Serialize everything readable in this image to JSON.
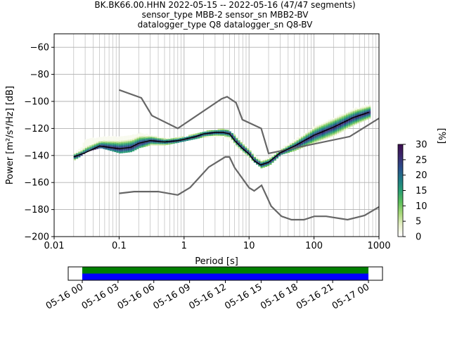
{
  "header": {
    "title_lines": [
      "BK.BK66.00.HHN   2022-05-15 -- 2022-05-16  (47/47 segments)",
      "sensor_type MBB-2 sensor_sn MBB2-BV",
      "datalogger_type Q8 datalogger_sn Q8-BV"
    ]
  },
  "chart_data": [
    {
      "type": "heatmap",
      "xlabel": "Period [s]",
      "ylabel": "Power [m²/s⁴/Hz] [dB]",
      "xscale": "log",
      "xlim": [
        0.01,
        1000
      ],
      "ylim": [
        -200,
        -50
      ],
      "grid": true,
      "x_ticks": [
        0.01,
        0.1,
        1,
        10,
        100,
        1000
      ],
      "x_tick_labels": [
        "0.01",
        "0.1",
        "1",
        "10",
        "100",
        "1000"
      ],
      "y_ticks": [
        -200,
        -180,
        -160,
        -140,
        -120,
        -100,
        -80,
        -60
      ],
      "y_tick_labels": [
        "−200",
        "−180",
        "−160",
        "−140",
        "−120",
        "−100",
        "−80",
        "−60"
      ],
      "colorbar": {
        "label": "[%]",
        "range": [
          0,
          30
        ],
        "ticks": [
          0,
          5,
          10,
          15,
          20,
          25,
          30
        ],
        "colormap": [
          "#ffffff",
          "#e8f0c8",
          "#a9d97a",
          "#5cbf5a",
          "#2a9e74",
          "#1f7a85",
          "#2a4f8c",
          "#3b2a6e",
          "#3c0f52"
        ]
      },
      "mean_curve_color": "#000000",
      "noise_model_color": "#666666",
      "mean_psd": {
        "x": [
          0.02,
          0.03,
          0.05,
          0.1,
          0.15,
          0.2,
          0.3,
          0.5,
          0.8,
          1,
          1.5,
          2,
          3,
          4,
          5,
          6,
          8,
          10,
          12,
          15,
          20,
          30,
          50,
          100,
          200,
          400,
          700
        ],
        "y": [
          -141,
          -138,
          -133,
          -135,
          -134,
          -131,
          -129,
          -130,
          -129,
          -128,
          -126,
          -124,
          -123,
          -123,
          -124,
          -129,
          -135,
          -139,
          -144,
          -147,
          -145,
          -138,
          -133,
          -125,
          -119,
          -112,
          -108
        ]
      },
      "nhnm": {
        "x": [
          0.1,
          0.22,
          0.32,
          0.8,
          3.8,
          4.6,
          6.3,
          7.9,
          15.4,
          20,
          354.8,
          1000
        ],
        "y": [
          -91.5,
          -97.4,
          -110.5,
          -120,
          -98,
          -96.5,
          -101,
          -113.5,
          -120,
          -138.5,
          -126,
          -112.5
        ]
      },
      "nlnm": {
        "x": [
          0.1,
          0.17,
          0.4,
          0.8,
          1.24,
          2.4,
          4.3,
          5,
          6,
          10,
          12,
          15.6,
          21.9,
          31.6,
          45,
          70,
          101,
          154,
          328,
          600,
          1000
        ],
        "y": [
          -168,
          -166.7,
          -166.7,
          -169.2,
          -163.7,
          -148.6,
          -141.1,
          -141.1,
          -149,
          -163.8,
          -166.2,
          -162.1,
          -177.5,
          -185,
          -187.5,
          -187.5,
          -185,
          -185,
          -187.5,
          -184.4,
          -178
        ]
      },
      "density_bands": [
        {
          "x": [
            0.02,
            0.025,
            0.03,
            0.05,
            0.1,
            0.15,
            0.2,
            0.3,
            0.5,
            1,
            2,
            4,
            6,
            10,
            15,
            20,
            30,
            50,
            100,
            200,
            400,
            700
          ],
          "lo": [
            -143,
            -140,
            -137,
            -134,
            -138,
            -137,
            -134,
            -132,
            -132,
            -129,
            -126,
            -126,
            -132,
            -142,
            -149,
            -147,
            -139,
            -136,
            -130,
            -125,
            -117,
            -112
          ],
          "hi": [
            -138,
            -134,
            -128,
            -126,
            -126,
            -125,
            -123,
            -125,
            -127,
            -126,
            -122,
            -120,
            -125,
            -136,
            -143,
            -141,
            -134,
            -128,
            -118,
            -112,
            -105,
            -102
          ]
        }
      ]
    },
    {
      "type": "timeline",
      "x_tick_labels": [
        "05-16 00",
        "05-16 03",
        "05-16 06",
        "05-16 09",
        "05-16 12",
        "05-16 15",
        "05-16 18",
        "05-16 21",
        "05-17 00"
      ],
      "bars": [
        {
          "color": "#008000",
          "start": "05-16 00",
          "end": "05-17 00"
        },
        {
          "color": "#0000ff",
          "start": "05-16 00",
          "end": "05-17 00"
        }
      ]
    }
  ]
}
